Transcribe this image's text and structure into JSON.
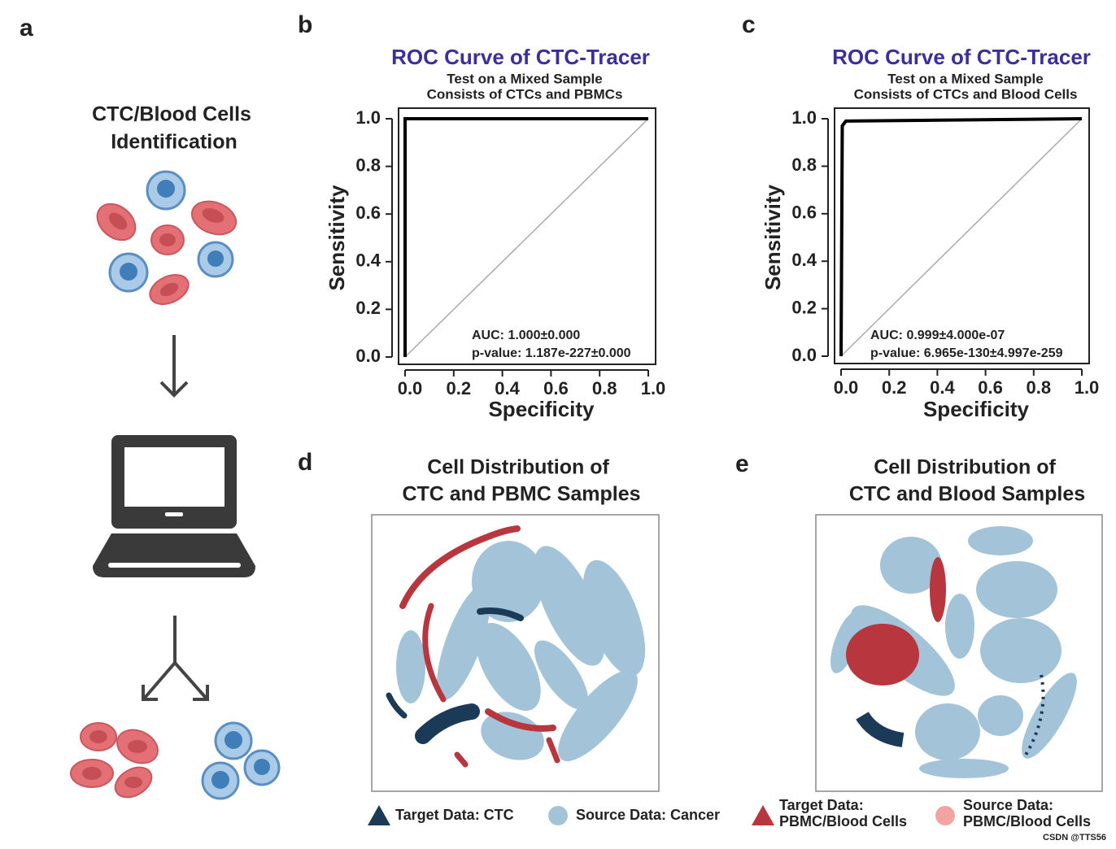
{
  "panel_labels": [
    "a",
    "b",
    "c",
    "d",
    "e"
  ],
  "panel_a": {
    "title": [
      "CTC/Blood Cells",
      "Identification"
    ]
  },
  "chart_data": [
    {
      "type": "line",
      "title": "ROC Curve of CTC-Tracer",
      "subtitle": [
        "Test on a Mixed Sample",
        "Consists of CTCs and PBMCs"
      ],
      "xlabel": "Specificity",
      "ylabel": "Sensitivity",
      "x": [
        0,
        0,
        1
      ],
      "series": [
        {
          "color": "#000000",
          "values": [
            0,
            1,
            1
          ]
        }
      ],
      "xlim": [
        0,
        1
      ],
      "ylim": [
        0,
        1
      ],
      "xticks": [
        {
          "value": 0,
          "label": "0.0"
        },
        0.2,
        0.4,
        0.6,
        0.8,
        {
          "value": 1,
          "label": "1.0"
        }
      ],
      "yticks": [
        {
          "value": 0,
          "label": "0.0"
        },
        0.2,
        0.4,
        0.6,
        0.8,
        {
          "value": 1,
          "label": "1.0"
        }
      ],
      "annotations": [
        "AUC: 1.000±0.000",
        "p-value: 1.187e-227±0.000"
      ]
    },
    {
      "type": "line",
      "title": "ROC Curve of CTC-Tracer",
      "subtitle": [
        "Test on a Mixed Sample",
        "Consists of CTCs and Blood Cells"
      ],
      "xlabel": "Specificity",
      "ylabel": "Sensitivity",
      "x": [
        0,
        0.005,
        0.02,
        1
      ],
      "series": [
        {
          "color": "#000000",
          "values": [
            0,
            0.97,
            0.99,
            1
          ]
        }
      ],
      "xlim": [
        0,
        1
      ],
      "ylim": [
        0,
        1
      ],
      "xticks": [
        {
          "value": 0,
          "label": "0.0"
        },
        0.2,
        0.4,
        0.6,
        0.8,
        {
          "value": 1,
          "label": "1.0"
        }
      ],
      "yticks": [
        {
          "value": 0,
          "label": "0.0"
        },
        0.2,
        0.4,
        0.6,
        0.8,
        {
          "value": 1,
          "label": "1.0"
        }
      ],
      "annotations": [
        "AUC: 0.999±4.000e-07",
        "p-value: 6.965e-130±4.997e-259"
      ]
    }
  ],
  "tsne": [
    {
      "title": [
        "Cell Distribution of",
        "CTC and PBMC Samples"
      ]
    },
    {
      "title": [
        "Cell Distribution of",
        "CTC and Blood Samples"
      ]
    }
  ],
  "legend": [
    {
      "label": [
        "Target Data: CTC"
      ],
      "color": "#1b3a58",
      "shape": "triangle"
    },
    {
      "label": [
        "Source Data: Cancer"
      ],
      "color": "#a3c4d8",
      "shape": "circle"
    },
    {
      "label": [
        "Target Data:",
        "PBMC/Blood Cells"
      ],
      "color": "#b8363e",
      "shape": "triangle"
    },
    {
      "label": [
        "Source Data:",
        "PBMC/Blood Cells"
      ],
      "color": "#f4a3a3",
      "shape": "circle"
    }
  ],
  "watermark": "CSDN @TTS56"
}
